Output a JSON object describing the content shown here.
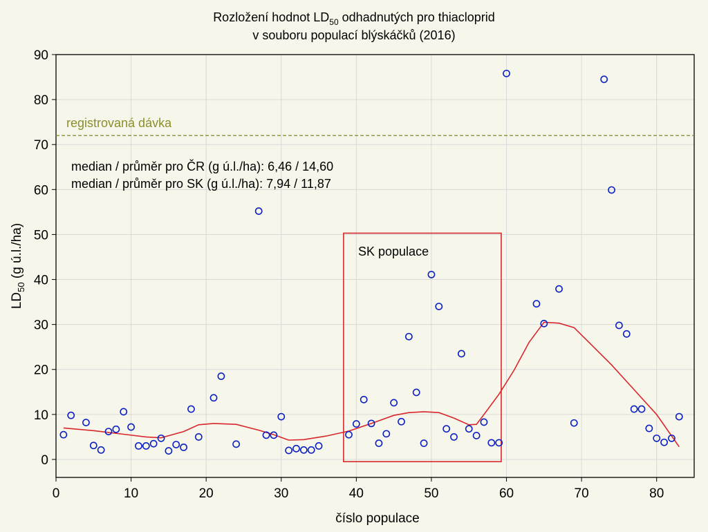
{
  "chart_data": {
    "type": "scatter",
    "title_line1_pre": "Rozložení hodnot LD",
    "title_line1_sub": "50",
    "title_line1_post": " odhadnutých pro thiacloprid",
    "title_line2": "v souboru populací blýskáčků (2016)",
    "xlabel": "číslo populace",
    "ylabel_pre": "LD",
    "ylabel_sub": "50",
    "ylabel_post": " (g ú.l./ha)",
    "xlim": [
      0,
      85
    ],
    "ylim": [
      -4,
      90
    ],
    "xticks": [
      "0",
      "10",
      "20",
      "30",
      "40",
      "50",
      "60",
      "70",
      "80"
    ],
    "yticks": [
      "0",
      "10",
      "20",
      "30",
      "40",
      "50",
      "60",
      "70",
      "80",
      "90"
    ],
    "grid": true,
    "colors": {
      "points": "#0b1fc4",
      "smooth": "#d8262c",
      "reference": "#8a8f2a",
      "box": "#d8262c"
    },
    "reference_line": {
      "label": "registrovaná dávka",
      "y": 72
    },
    "annotations": [
      "median / průměr pro ČR (g ú.l./ha): 6,46 / 14,60",
      "median / průměr pro SK (g ú.l./ha): 7,94 / 11,87"
    ],
    "sk_region": {
      "label": "SK populace",
      "x": [
        38.3,
        59.3
      ],
      "y": [
        -0.5,
        50.3
      ]
    },
    "points": [
      [
        1,
        5.5
      ],
      [
        2,
        9.8
      ],
      [
        4,
        8.2
      ],
      [
        5,
        3.1
      ],
      [
        6,
        2.1
      ],
      [
        7,
        6.2
      ],
      [
        8,
        6.7
      ],
      [
        9,
        10.6
      ],
      [
        10,
        7.2
      ],
      [
        11,
        3.0
      ],
      [
        12,
        3.0
      ],
      [
        13,
        3.5
      ],
      [
        14,
        4.7
      ],
      [
        15,
        1.9
      ],
      [
        16,
        3.3
      ],
      [
        17,
        2.7
      ],
      [
        18,
        11.2
      ],
      [
        19,
        5.0
      ],
      [
        21,
        13.7
      ],
      [
        22,
        18.5
      ],
      [
        24,
        3.4
      ],
      [
        27,
        55.2
      ],
      [
        28,
        5.4
      ],
      [
        29,
        5.4
      ],
      [
        30,
        9.5
      ],
      [
        31,
        2.0
      ],
      [
        32,
        2.4
      ],
      [
        33,
        2.1
      ],
      [
        34,
        2.1
      ],
      [
        35,
        3.0
      ],
      [
        39,
        5.5
      ],
      [
        40,
        7.9
      ],
      [
        41,
        13.3
      ],
      [
        42,
        8.0
      ],
      [
        43,
        3.6
      ],
      [
        44,
        5.7
      ],
      [
        45,
        12.6
      ],
      [
        46,
        8.4
      ],
      [
        47,
        27.3
      ],
      [
        48,
        14.9
      ],
      [
        49,
        3.6
      ],
      [
        50,
        41.1
      ],
      [
        51,
        34.0
      ],
      [
        52,
        6.8
      ],
      [
        53,
        5.0
      ],
      [
        54,
        23.5
      ],
      [
        55,
        6.8
      ],
      [
        56,
        5.3
      ],
      [
        57,
        8.3
      ],
      [
        58,
        3.7
      ],
      [
        59,
        3.7
      ],
      [
        60,
        85.8
      ],
      [
        64,
        34.6
      ],
      [
        65,
        30.2
      ],
      [
        67,
        37.9
      ],
      [
        69,
        8.1
      ],
      [
        73,
        84.5
      ],
      [
        74,
        59.9
      ],
      [
        75,
        29.8
      ],
      [
        76,
        27.9
      ],
      [
        77,
        11.2
      ],
      [
        78,
        11.2
      ],
      [
        79,
        6.9
      ],
      [
        80,
        4.7
      ],
      [
        81,
        3.8
      ],
      [
        82,
        4.7
      ],
      [
        83,
        9.5
      ]
    ],
    "smooth_line": [
      [
        1,
        7.0
      ],
      [
        5,
        6.4
      ],
      [
        9,
        5.6
      ],
      [
        12,
        5.0
      ],
      [
        14,
        4.8
      ],
      [
        17,
        6.2
      ],
      [
        19,
        7.7
      ],
      [
        21,
        8.0
      ],
      [
        24,
        7.8
      ],
      [
        27,
        6.5
      ],
      [
        29,
        5.5
      ],
      [
        31,
        4.3
      ],
      [
        33,
        4.4
      ],
      [
        36,
        5.2
      ],
      [
        39,
        6.3
      ],
      [
        42,
        8.0
      ],
      [
        45,
        9.8
      ],
      [
        47,
        10.4
      ],
      [
        49,
        10.6
      ],
      [
        51,
        10.4
      ],
      [
        53,
        9.2
      ],
      [
        55,
        7.7
      ],
      [
        56,
        7.8
      ],
      [
        57,
        10.0
      ],
      [
        59,
        14.5
      ],
      [
        61,
        19.8
      ],
      [
        63,
        26.0
      ],
      [
        65,
        30.5
      ],
      [
        67,
        30.3
      ],
      [
        69,
        29.3
      ],
      [
        71,
        26.0
      ],
      [
        74,
        21.0
      ],
      [
        77,
        15.5
      ],
      [
        80,
        10.0
      ],
      [
        83,
        2.8
      ]
    ]
  }
}
